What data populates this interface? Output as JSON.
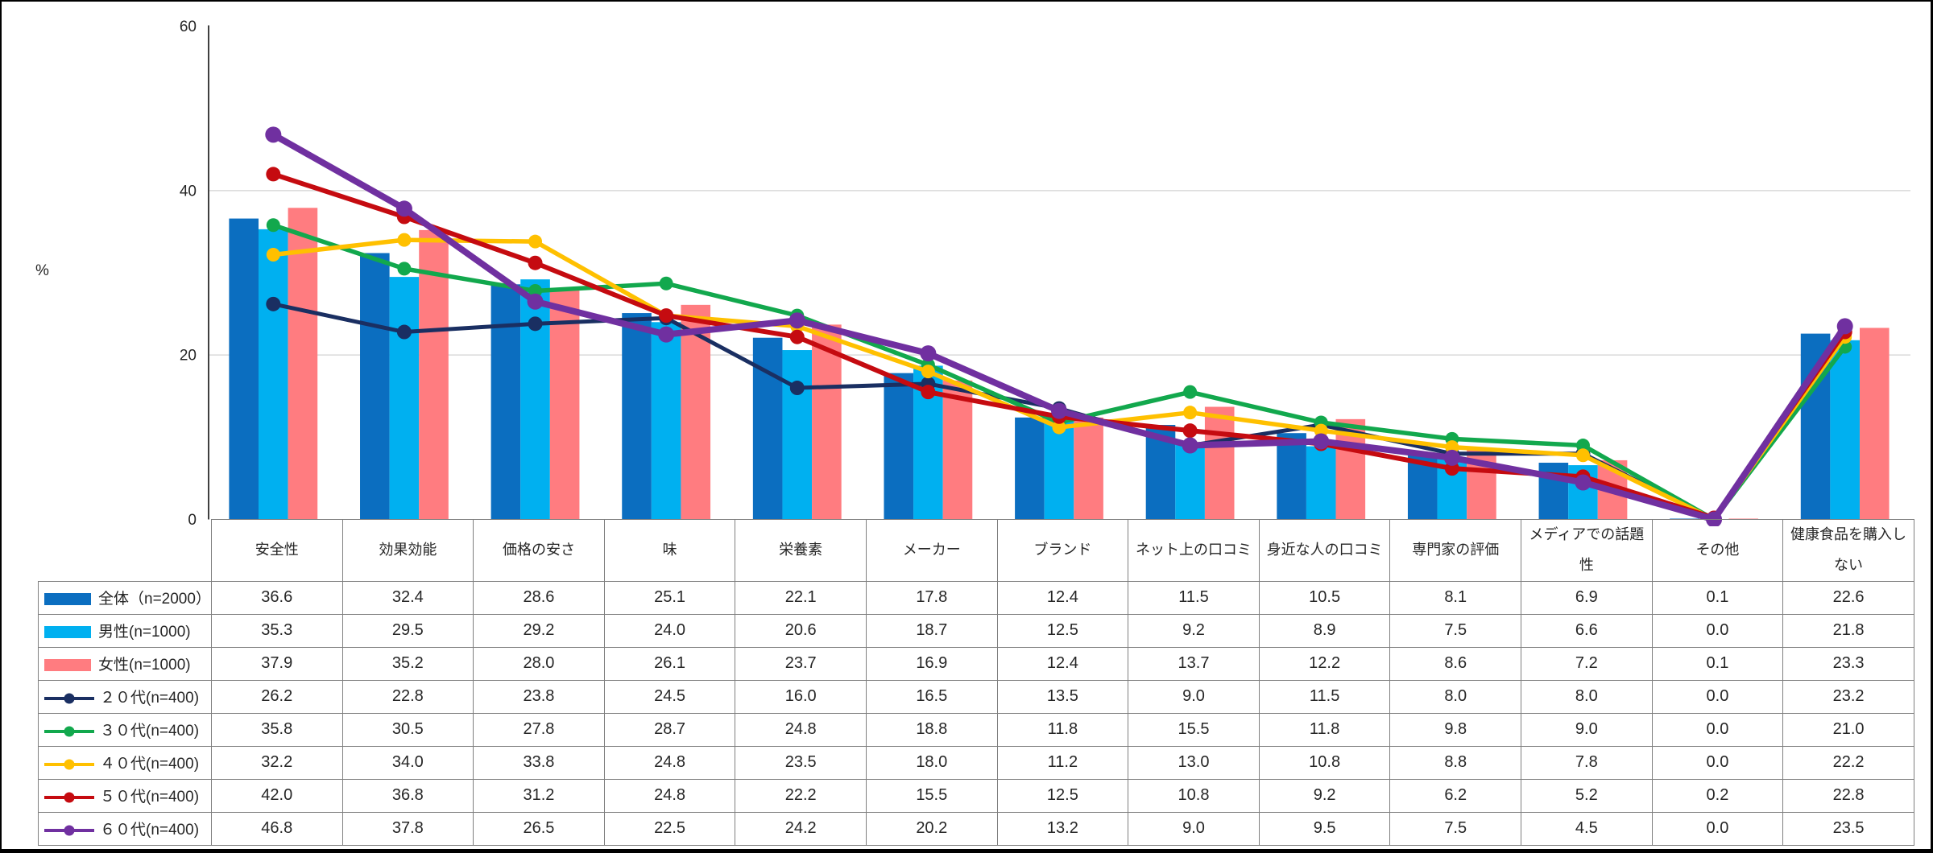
{
  "chart_data": {
    "type": "bar+line",
    "title": "",
    "ylabel": "%",
    "ylim": [
      0,
      60
    ],
    "yticks": [
      0,
      20,
      40,
      60
    ],
    "gridlines": [
      20,
      40
    ],
    "grid_color": "#D9D9D9",
    "axis_color": "#404040",
    "text_color": "#262626",
    "legend_position": "table-left-column",
    "categories": [
      "安全性",
      "効果効能",
      "価格の安さ",
      "味",
      "栄養素",
      "メーカー",
      "ブランド",
      "ネット上の口コミ",
      "身近な人の口コミ",
      "専門家の評価",
      "メディアでの話題性",
      "その他",
      "健康食品を購入しない"
    ],
    "bar_series": [
      {
        "name": "全体（n=2000）",
        "color": "#0B6EC0",
        "values": [
          36.6,
          32.4,
          28.6,
          25.1,
          22.1,
          17.8,
          12.4,
          11.5,
          10.5,
          8.1,
          6.9,
          0.1,
          22.6
        ]
      },
      {
        "name": "男性(n=1000)",
        "color": "#00B0F0",
        "values": [
          35.3,
          29.5,
          29.2,
          24.0,
          20.6,
          18.7,
          12.5,
          9.2,
          8.9,
          7.5,
          6.6,
          0.0,
          21.8
        ]
      },
      {
        "name": "女性(n=1000)",
        "color": "#FF7C80",
        "values": [
          37.9,
          35.2,
          28.0,
          26.1,
          23.7,
          16.9,
          12.4,
          13.7,
          12.2,
          8.6,
          7.2,
          0.1,
          23.3
        ]
      }
    ],
    "line_series": [
      {
        "name": "２０代(n=400)",
        "color": "#1A2F62",
        "stroke_w": 5,
        "marker_r": 9,
        "values": [
          26.2,
          22.8,
          23.8,
          24.5,
          16.0,
          16.5,
          13.5,
          9.0,
          11.5,
          8.0,
          8.0,
          0.0,
          23.2
        ]
      },
      {
        "name": "３０代(n=400)",
        "color": "#12A84D",
        "stroke_w": 5.5,
        "marker_r": 8.5,
        "values": [
          35.8,
          30.5,
          27.8,
          28.7,
          24.8,
          18.8,
          11.8,
          15.5,
          11.8,
          9.8,
          9.0,
          0.0,
          21.0
        ]
      },
      {
        "name": "４０代(n=400)",
        "color": "#FFC000",
        "stroke_w": 5.5,
        "marker_r": 8.5,
        "values": [
          32.2,
          34.0,
          33.8,
          24.8,
          23.5,
          18.0,
          11.2,
          13.0,
          10.8,
          8.8,
          7.8,
          0.0,
          22.2
        ]
      },
      {
        "name": "５０代(n=400)",
        "color": "#C50B10",
        "stroke_w": 6,
        "marker_r": 9,
        "values": [
          42.0,
          36.8,
          31.2,
          24.8,
          22.2,
          15.5,
          12.5,
          10.8,
          9.2,
          6.2,
          5.2,
          0.2,
          22.8
        ]
      },
      {
        "name": "６０代(n=400)",
        "color": "#7030A0",
        "stroke_w": 8,
        "marker_r": 10,
        "values": [
          46.8,
          37.8,
          26.5,
          22.5,
          24.2,
          20.2,
          13.2,
          9.0,
          9.5,
          7.5,
          4.5,
          0.0,
          23.5
        ]
      }
    ]
  },
  "table": {
    "border_color": "#7F7F7F"
  }
}
